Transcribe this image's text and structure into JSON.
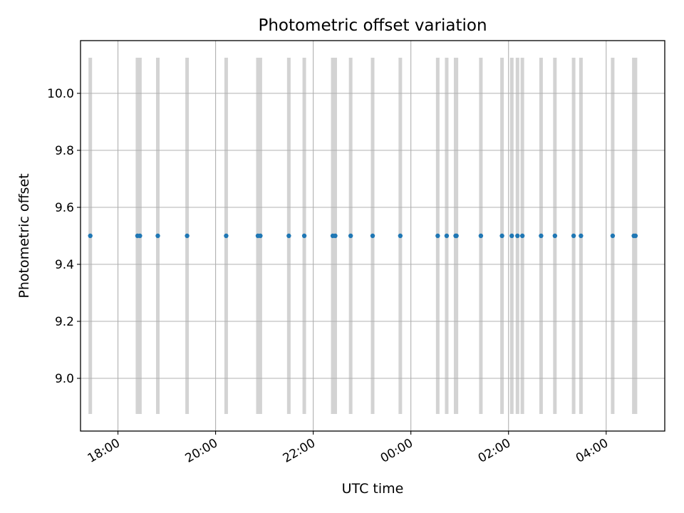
{
  "chart_data": {
    "type": "scatter",
    "title": "Photometric offset variation",
    "xlabel": "UTC time",
    "ylabel": "Photometric offset",
    "x_format": "HH:MM",
    "x_range": [
      "17:14",
      "05:12"
    ],
    "ylim": [
      8.815,
      10.185
    ],
    "ylim_bands": [
      8.875,
      10.125
    ],
    "grid": true,
    "xticks": [
      "18:00",
      "20:00",
      "22:00",
      "00:00",
      "02:00",
      "04:00"
    ],
    "yticks": [
      "9.0",
      "9.2",
      "9.4",
      "9.6",
      "9.8",
      "10.0"
    ],
    "marker_color": "#1f77b4",
    "band_color": "#d3d3d3",
    "x": [
      "17:26",
      "18:24",
      "18:27",
      "18:49",
      "19:25",
      "20:13",
      "20:52",
      "20:55",
      "21:30",
      "21:49",
      "22:24",
      "22:27",
      "22:46",
      "23:13",
      "23:47",
      "00:33",
      "00:44",
      "00:55",
      "00:56",
      "01:26",
      "01:52",
      "02:04",
      "02:11",
      "02:17",
      "02:40",
      "02:57",
      "03:20",
      "03:29",
      "04:08",
      "04:34",
      "04:36"
    ],
    "y": [
      9.5,
      9.5,
      9.5,
      9.5,
      9.5,
      9.5,
      9.5,
      9.5,
      9.5,
      9.5,
      9.5,
      9.5,
      9.5,
      9.5,
      9.5,
      9.5,
      9.5,
      9.5,
      9.5,
      9.5,
      9.5,
      9.5,
      9.5,
      9.5,
      9.5,
      9.5,
      9.5,
      9.5,
      9.5,
      9.5,
      9.5
    ]
  }
}
